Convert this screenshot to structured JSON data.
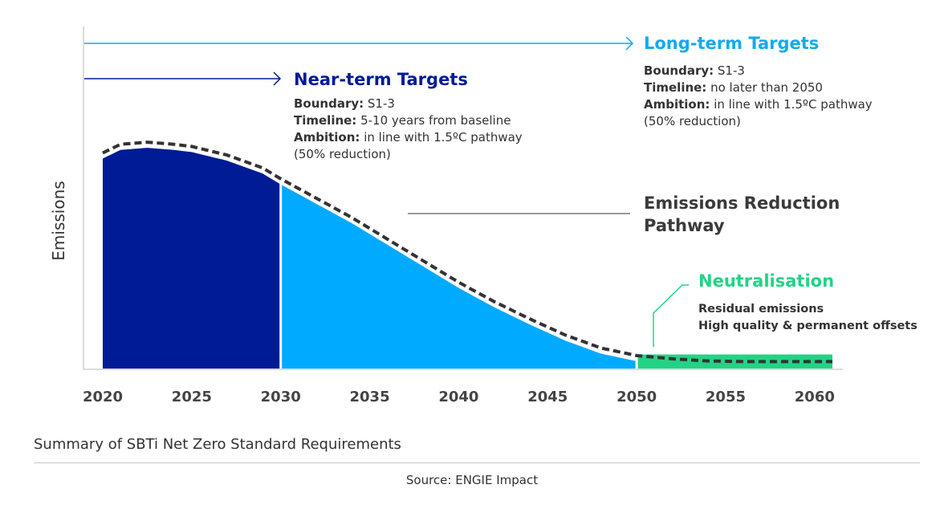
{
  "chart_data": {
    "type": "area",
    "title": "Summary of SBTi Net Zero Standard Requirements",
    "ylabel": "Emissions",
    "xlabel": "",
    "xlim": [
      2020,
      2061
    ],
    "ylim": [
      0,
      100
    ],
    "x_ticks": [
      "2020",
      "2025",
      "2030",
      "2035",
      "2040",
      "2045",
      "2050",
      "2055",
      "2060"
    ],
    "pathway": {
      "name": "Emissions Reduction Pathway",
      "x": [
        2020,
        2021,
        2022.5,
        2024,
        2025,
        2027,
        2029,
        2030,
        2032,
        2034,
        2036,
        2038,
        2040,
        2042,
        2044,
        2046,
        2048,
        2050,
        2052,
        2054,
        2056,
        2058,
        2061
      ],
      "y": [
        100,
        104,
        105,
        104,
        103,
        99,
        93,
        88,
        79,
        70,
        60,
        50,
        40,
        31,
        23,
        15.5,
        9.5,
        6,
        4.5,
        3.5,
        3.2,
        3.2,
        3.2
      ]
    },
    "segments": [
      {
        "name": "Near-term",
        "from": 2020,
        "to": 2030,
        "color": "#001b96"
      },
      {
        "name": "Long-term",
        "from": 2030,
        "to": 2050,
        "color": "#00aaff"
      },
      {
        "name": "Neutralisation",
        "from": 2050,
        "to": 2061,
        "color": "#23d385",
        "height": 6.5
      }
    ],
    "annotations": {
      "near_term": {
        "title": "Near-term Targets",
        "color": "#001b96",
        "lines": [
          {
            "label": "Boundary:",
            "text": " S1-3"
          },
          {
            "label": "Timeline:",
            "text": " 5-10 years from baseline"
          },
          {
            "label": "Ambition:",
            "text": " in line with 1.5ºC pathway"
          },
          {
            "label": "",
            "text": "(50% reduction)"
          }
        ]
      },
      "long_term": {
        "title": "Long-term Targets",
        "color": "#12aaf0",
        "lines": [
          {
            "label": "Boundary:",
            "text": " S1-3"
          },
          {
            "label": "Timeline:",
            "text": " no later than 2050"
          },
          {
            "label": "Ambition:",
            "text": " in line with 1.5ºC pathway"
          },
          {
            "label": "",
            "text": "(50% reduction)"
          }
        ]
      },
      "pathway_label": [
        "Emissions Reduction",
        "Pathway"
      ],
      "neutralisation": {
        "title": "Neutralisation",
        "color": "#23d385",
        "lines": [
          "Residual emissions",
          "High quality & permanent offsets"
        ]
      }
    },
    "source": "Source: ENGIE Impact"
  }
}
